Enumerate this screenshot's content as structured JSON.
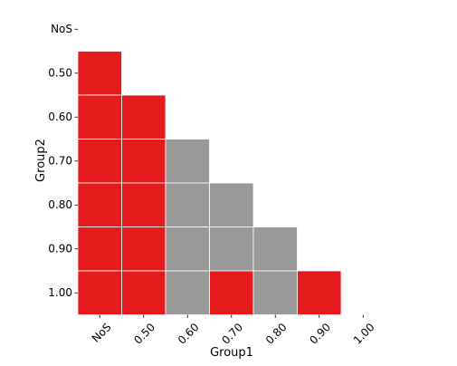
{
  "chart_data": {
    "type": "heatmap",
    "xlabel": "Group1",
    "ylabel": "Group2",
    "x_categories": [
      "NoS",
      "0.50",
      "0.60",
      "0.70",
      "0.80",
      "0.90",
      "1.00"
    ],
    "y_categories": [
      "NoS",
      "0.50",
      "0.60",
      "0.70",
      "0.80",
      "0.90",
      "1.00"
    ],
    "color_legend": {
      "red": "#e41a1c",
      "gray": "#999999"
    },
    "cell_border_color": "#ffffff",
    "cells": [
      {
        "x": "NoS",
        "y": "0.50",
        "color": "red"
      },
      {
        "x": "NoS",
        "y": "0.60",
        "color": "red"
      },
      {
        "x": "0.50",
        "y": "0.60",
        "color": "red"
      },
      {
        "x": "NoS",
        "y": "0.70",
        "color": "red"
      },
      {
        "x": "0.50",
        "y": "0.70",
        "color": "red"
      },
      {
        "x": "0.60",
        "y": "0.70",
        "color": "gray"
      },
      {
        "x": "NoS",
        "y": "0.80",
        "color": "red"
      },
      {
        "x": "0.50",
        "y": "0.80",
        "color": "red"
      },
      {
        "x": "0.60",
        "y": "0.80",
        "color": "gray"
      },
      {
        "x": "0.70",
        "y": "0.80",
        "color": "gray"
      },
      {
        "x": "NoS",
        "y": "0.90",
        "color": "red"
      },
      {
        "x": "0.50",
        "y": "0.90",
        "color": "red"
      },
      {
        "x": "0.60",
        "y": "0.90",
        "color": "gray"
      },
      {
        "x": "0.70",
        "y": "0.90",
        "color": "gray"
      },
      {
        "x": "0.80",
        "y": "0.90",
        "color": "gray"
      },
      {
        "x": "NoS",
        "y": "1.00",
        "color": "red"
      },
      {
        "x": "0.50",
        "y": "1.00",
        "color": "red"
      },
      {
        "x": "0.60",
        "y": "1.00",
        "color": "gray"
      },
      {
        "x": "0.70",
        "y": "1.00",
        "color": "red"
      },
      {
        "x": "0.80",
        "y": "1.00",
        "color": "gray"
      },
      {
        "x": "0.90",
        "y": "1.00",
        "color": "red"
      }
    ]
  }
}
